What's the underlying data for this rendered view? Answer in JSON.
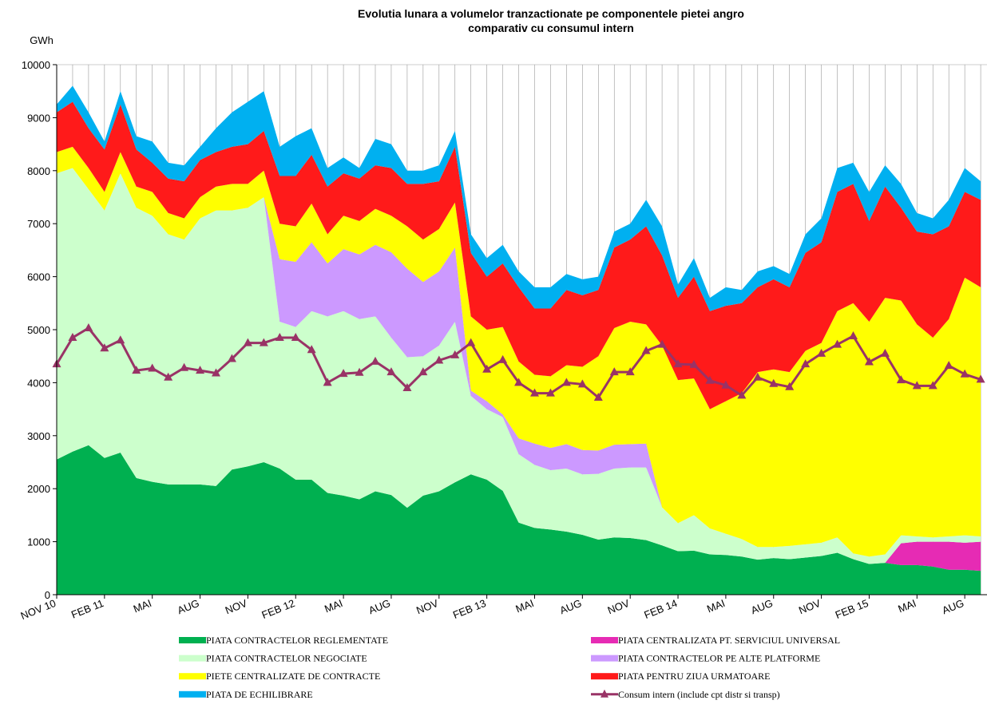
{
  "chart_data": {
    "type": "area",
    "stacked": true,
    "title": "Evolutia lunara a volumelor tranzactionate pe componentele pietei angro",
    "subtitle": "comparativ cu consumul intern",
    "y_label": "GWh",
    "categories": [
      "NOV 10",
      null,
      null,
      "FEB 11",
      null,
      null,
      "MAI",
      null,
      null,
      "AUG",
      null,
      null,
      "NOV",
      null,
      null,
      "FEB 12",
      null,
      null,
      "MAI",
      null,
      null,
      "AUG",
      null,
      null,
      "NOV",
      null,
      null,
      "FEB 13",
      null,
      null,
      "MAI",
      null,
      null,
      "AUG",
      null,
      null,
      "NOV",
      null,
      null,
      "FEB 14",
      null,
      null,
      "MAI",
      null,
      null,
      "AUG",
      null,
      null,
      "NOV",
      null,
      null,
      "FEB 15",
      null,
      null,
      "MAI",
      null,
      null,
      "AUG",
      null
    ],
    "ylim": [
      0,
      10000
    ],
    "yticks": [
      0,
      1000,
      2000,
      3000,
      4000,
      5000,
      6000,
      7000,
      8000,
      9000,
      10000
    ],
    "series": [
      {
        "name": "PIATA CONTRACTELOR REGLEMENTATE",
        "color": "#00b050",
        "values": [
          2550,
          2700,
          2820,
          2580,
          2680,
          2200,
          2130,
          2080,
          2080,
          2080,
          2050,
          2360,
          2420,
          2500,
          2380,
          2170,
          2170,
          1920,
          1870,
          1800,
          1950,
          1880,
          1640,
          1870,
          1950,
          2120,
          2270,
          2170,
          1960,
          1360,
          1260,
          1230,
          1190,
          1130,
          1040,
          1080,
          1070,
          1030,
          930,
          820,
          830,
          760,
          750,
          720,
          660,
          690,
          670,
          700,
          730,
          790,
          670,
          580,
          600,
          560,
          560,
          530,
          470,
          470,
          450
        ]
      },
      {
        "name": "PIATA CENTRALIZATA PT. SERVICIUL UNIVERSAL",
        "color": "#e62bb4",
        "values": [
          0,
          0,
          0,
          0,
          0,
          0,
          0,
          0,
          0,
          0,
          0,
          0,
          0,
          0,
          0,
          0,
          0,
          0,
          0,
          0,
          0,
          0,
          0,
          0,
          0,
          0,
          0,
          0,
          0,
          0,
          0,
          0,
          0,
          0,
          0,
          0,
          0,
          0,
          0,
          0,
          0,
          0,
          0,
          0,
          0,
          0,
          0,
          0,
          0,
          0,
          0,
          0,
          0,
          410,
          440,
          470,
          530,
          510,
          550
        ]
      },
      {
        "name": "PIATA CONTRACTELOR NEGOCIATE",
        "color": "#ccffcc",
        "values": [
          5400,
          5350,
          4830,
          4670,
          5270,
          5100,
          5020,
          4720,
          4620,
          5020,
          5200,
          4890,
          4880,
          5000,
          2770,
          2880,
          3180,
          3330,
          3480,
          3400,
          3300,
          2970,
          2840,
          2630,
          2750,
          3030,
          1480,
          1330,
          1390,
          1290,
          1190,
          1120,
          1190,
          1140,
          1240,
          1300,
          1330,
          1370,
          720,
          530,
          670,
          490,
          400,
          330,
          240,
          210,
          250,
          250,
          250,
          290,
          110,
          140,
          160,
          150,
          100,
          80,
          100,
          140,
          100
        ]
      },
      {
        "name": "PIATA CONTRACTELOR PE ALTE PLATFORME",
        "color": "#cc99ff",
        "values": [
          0,
          0,
          0,
          0,
          0,
          0,
          0,
          0,
          0,
          0,
          0,
          0,
          0,
          0,
          1180,
          1230,
          1300,
          1000,
          1170,
          1220,
          1350,
          1610,
          1670,
          1400,
          1400,
          1400,
          100,
          150,
          50,
          300,
          400,
          420,
          460,
          460,
          440,
          450,
          440,
          450,
          0,
          0,
          0,
          0,
          0,
          0,
          0,
          0,
          0,
          0,
          0,
          0,
          0,
          0,
          0,
          0,
          0,
          0,
          0,
          0,
          0
        ]
      },
      {
        "name": "PIETE CENTRALIZATE DE CONTRACTE",
        "color": "#ffff00",
        "values": [
          400,
          400,
          400,
          350,
          400,
          400,
          450,
          400,
          400,
          400,
          450,
          500,
          450,
          500,
          670,
          670,
          730,
          550,
          630,
          630,
          680,
          690,
          800,
          800,
          800,
          850,
          1400,
          1350,
          1650,
          1450,
          1300,
          1350,
          1490,
          1570,
          1780,
          2200,
          2310,
          2250,
          3050,
          2700,
          2580,
          2250,
          2500,
          2750,
          3300,
          3350,
          3280,
          3650,
          3770,
          4270,
          4720,
          4430,
          4840,
          4430,
          4000,
          3770,
          4100,
          4860,
          4700
        ]
      },
      {
        "name": "PIATA PENTRU ZIUA URMATOARE",
        "color": "#ff1a1a",
        "values": [
          750,
          850,
          750,
          800,
          900,
          700,
          550,
          650,
          700,
          700,
          650,
          700,
          750,
          750,
          900,
          950,
          920,
          900,
          800,
          800,
          820,
          900,
          800,
          1050,
          900,
          1050,
          1200,
          1000,
          1200,
          1400,
          1250,
          1280,
          1420,
          1350,
          1250,
          1520,
          1550,
          1850,
          1700,
          1550,
          1920,
          1850,
          1800,
          1700,
          1600,
          1700,
          1600,
          1850,
          1900,
          2250,
          2250,
          1900,
          2100,
          1750,
          1750,
          1950,
          1750,
          1620,
          1650
        ]
      },
      {
        "name": "PIATA DE ECHILIBRARE",
        "color": "#00b0f0",
        "values": [
          150,
          300,
          300,
          150,
          250,
          250,
          400,
          300,
          300,
          250,
          450,
          650,
          800,
          750,
          550,
          750,
          500,
          350,
          300,
          200,
          500,
          450,
          250,
          250,
          300,
          300,
          350,
          350,
          350,
          300,
          400,
          400,
          300,
          300,
          250,
          300,
          300,
          500,
          550,
          250,
          350,
          250,
          350,
          250,
          300,
          250,
          250,
          350,
          450,
          450,
          400,
          550,
          400,
          450,
          350,
          300,
          500,
          450,
          350
        ]
      },
      {
        "name": "Consum intern (include cpt distr si transp)",
        "color": "#993366",
        "type": "line",
        "values": [
          4350,
          4850,
          5030,
          4650,
          4800,
          4230,
          4270,
          4100,
          4280,
          4230,
          4180,
          4450,
          4750,
          4750,
          4850,
          4850,
          4620,
          4000,
          4170,
          4190,
          4400,
          4200,
          3900,
          4200,
          4420,
          4520,
          4750,
          4250,
          4430,
          4000,
          3800,
          3800,
          4000,
          3970,
          3720,
          4200,
          4200,
          4600,
          4720,
          4350,
          4340,
          4040,
          3950,
          3760,
          4100,
          3980,
          3920,
          4350,
          4550,
          4720,
          4880,
          4390,
          4550,
          4050,
          3940,
          3940,
          4320,
          4160,
          4060
        ]
      }
    ]
  }
}
